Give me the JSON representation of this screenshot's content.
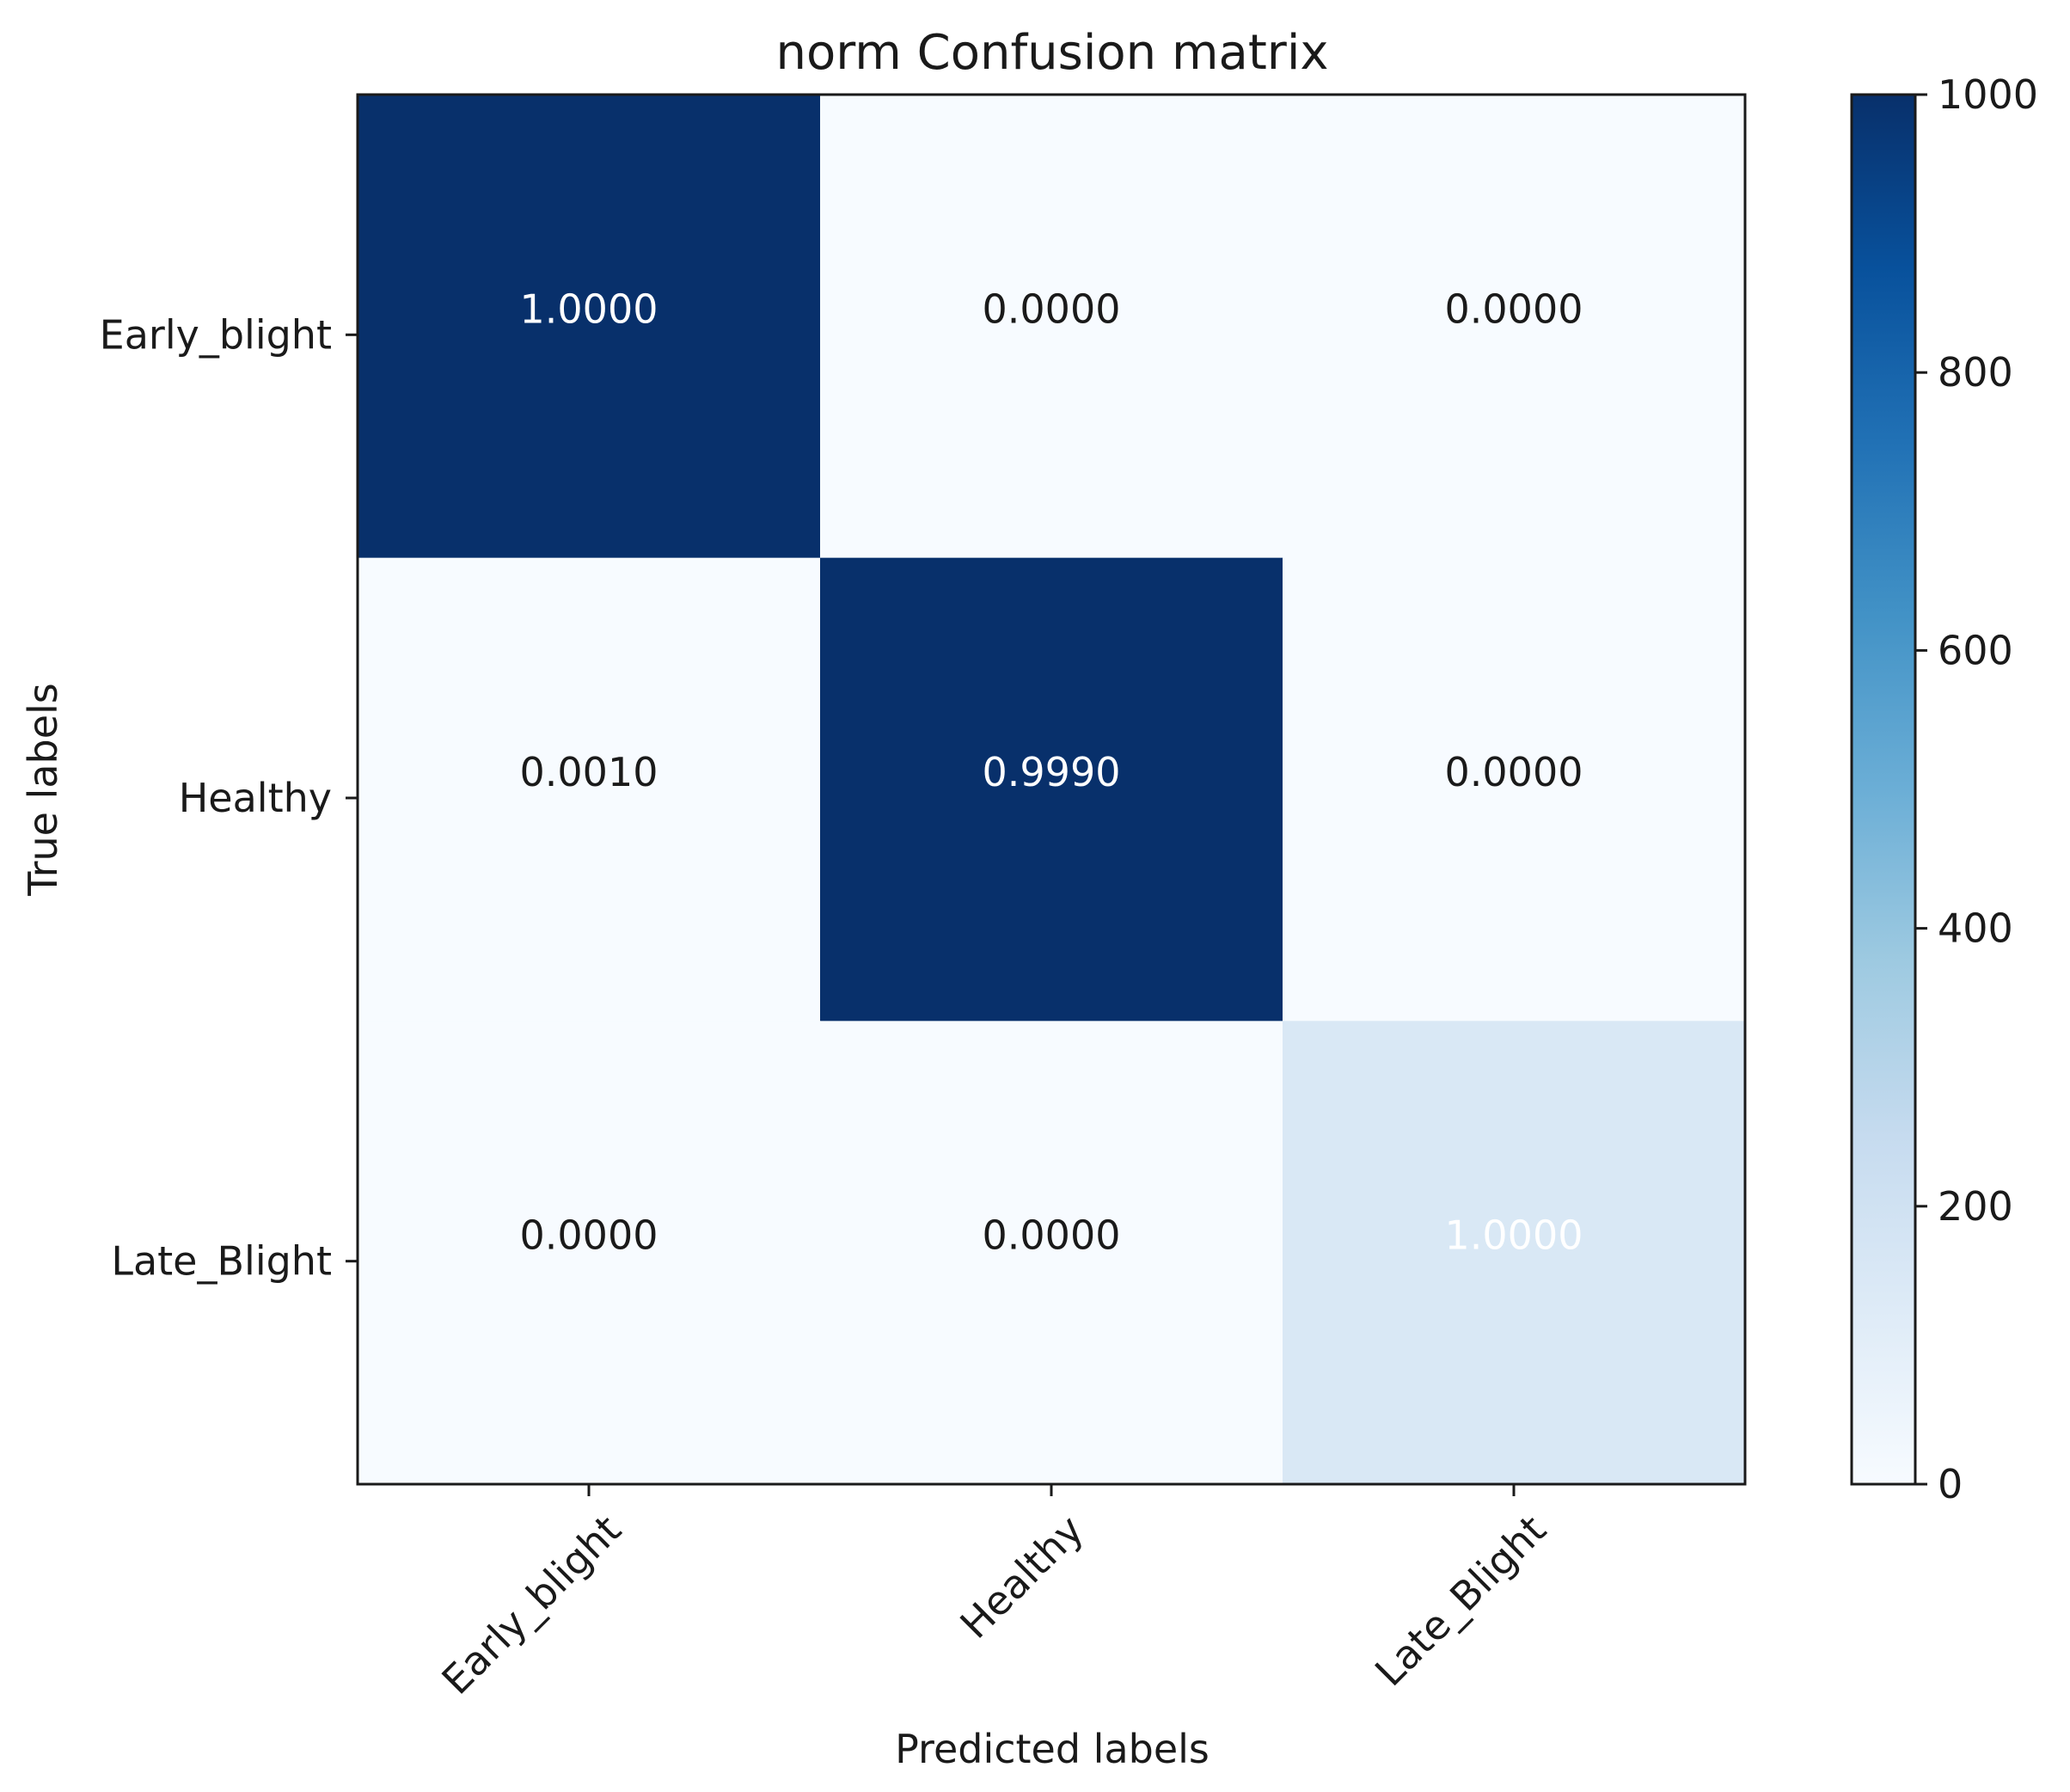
{
  "chart_data": {
    "type": "heatmap",
    "title": "norm Confusion matrix",
    "xlabel": "Predicted labels",
    "ylabel": "True labels",
    "x_categories": [
      "Early_blight",
      "Healthy",
      "Late_Blight"
    ],
    "y_categories": [
      "Early_blight",
      "Healthy",
      "Late_Blight"
    ],
    "cell_labels": [
      [
        "1.0000",
        "0.0000",
        "0.0000"
      ],
      [
        "0.0010",
        "0.9990",
        "0.0000"
      ],
      [
        "0.0000",
        "0.0000",
        "1.0000"
      ]
    ],
    "cell_values": [
      [
        1000,
        0,
        0
      ],
      [
        1,
        999,
        0
      ],
      [
        0,
        0,
        152
      ]
    ],
    "cell_label_colors": [
      [
        "#ffffff",
        "#1a1a1a",
        "#1a1a1a"
      ],
      [
        "#1a1a1a",
        "#ffffff",
        "#1a1a1a"
      ],
      [
        "#1a1a1a",
        "#1a1a1a",
        "#ffffff"
      ]
    ],
    "colorbar": {
      "min": 0,
      "max": 1000,
      "ticks": [
        0,
        200,
        400,
        600,
        800,
        1000
      ],
      "tick_labels": [
        "0",
        "200",
        "400",
        "600",
        "800",
        "1000"
      ],
      "colormap": "Blues",
      "colors": [
        "#f7fbff",
        "#deebf7",
        "#c6dbef",
        "#9ecae1",
        "#6baed6",
        "#4292c6",
        "#2171b5",
        "#08519c",
        "#08306b"
      ]
    }
  }
}
